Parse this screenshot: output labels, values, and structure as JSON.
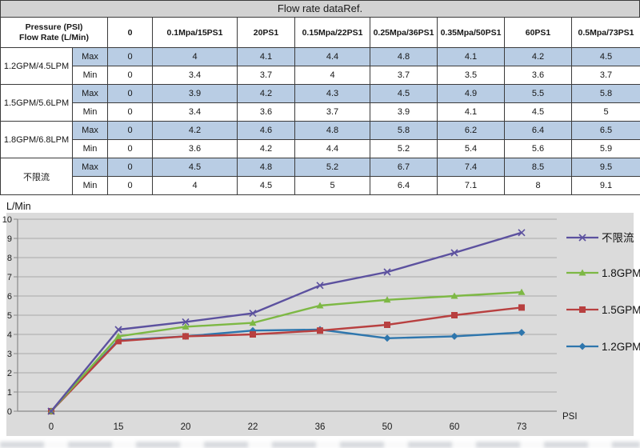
{
  "table": {
    "title": "Flow rate dataRef.",
    "corner": {
      "line1": "Pressure (PSI)",
      "line2": "Flow Rate (L/Min)"
    },
    "pressure_columns": [
      "0",
      "0.1Mpa/15PS1",
      "20PS1",
      "0.15Mpa/22PS1",
      "0.25Mpa/36PS1",
      "0.35Mpa/50PS1",
      "60PS1",
      "0.5Mpa/73PS1"
    ],
    "row_type_labels": {
      "max": "Max",
      "min": "Min"
    },
    "groups": [
      {
        "label": "1.2GPM/4.5LPM",
        "max": [
          "0",
          "4",
          "4.1",
          "4.4",
          "4.8",
          "4.1",
          "4.2",
          "4.5"
        ],
        "min": [
          "0",
          "3.4",
          "3.7",
          "4",
          "3.7",
          "3.5",
          "3.6",
          "3.7"
        ]
      },
      {
        "label": "1.5GPM/5.6LPM",
        "max": [
          "0",
          "3.9",
          "4.2",
          "4.3",
          "4.5",
          "4.9",
          "5.5",
          "5.8"
        ],
        "min": [
          "0",
          "3.4",
          "3.6",
          "3.7",
          "3.9",
          "4.1",
          "4.5",
          "5"
        ]
      },
      {
        "label": "1.8GPM/6.8LPM",
        "max": [
          "0",
          "4.2",
          "4.6",
          "4.8",
          "5.8",
          "6.2",
          "6.4",
          "6.5"
        ],
        "min": [
          "0",
          "3.6",
          "4.2",
          "4.4",
          "5.2",
          "5.4",
          "5.6",
          "5.9"
        ]
      },
      {
        "label": "不限流",
        "max": [
          "0",
          "4.5",
          "4.8",
          "5.2",
          "6.7",
          "7.4",
          "8.5",
          "9.5"
        ],
        "min": [
          "0",
          "4",
          "4.5",
          "5",
          "6.4",
          "7.1",
          "8",
          "9.1"
        ]
      }
    ],
    "colors": {
      "max_row_bg": "#b9cde4",
      "title_bg": "#d2d2d2",
      "border": "#3c3c3c"
    }
  },
  "chart_data": {
    "type": "line",
    "title": "",
    "ylabel": "L/Min",
    "xlabel": "PSI",
    "x": [
      0,
      15,
      20,
      22,
      36,
      50,
      60,
      73
    ],
    "x_tick_labels": [
      "0",
      "15",
      "20",
      "22",
      "36",
      "50",
      "60",
      "73"
    ],
    "ylim": [
      0,
      10
    ],
    "y_ticks": [
      0,
      1,
      2,
      3,
      4,
      5,
      6,
      7,
      8,
      9,
      10
    ],
    "grid": true,
    "legend_position": "right",
    "plot_bg": "#dbdbdb",
    "gridline_color": "#a9a9a9",
    "axis_color": "#8a8a8a",
    "series": [
      {
        "name": "不限流",
        "color": "#5c519f",
        "marker": "x",
        "values": [
          0,
          4.25,
          4.65,
          5.1,
          6.55,
          7.25,
          8.25,
          9.3
        ]
      },
      {
        "name": "1.8GPM",
        "color": "#7db844",
        "marker": "triangle",
        "values": [
          0,
          3.9,
          4.4,
          4.6,
          5.5,
          5.8,
          6.0,
          6.2
        ]
      },
      {
        "name": "1.5GPM",
        "color": "#b84040",
        "marker": "square",
        "values": [
          0,
          3.65,
          3.9,
          4.0,
          4.2,
          4.5,
          5.0,
          5.4
        ]
      },
      {
        "name": "1.2GPM",
        "color": "#2e76ad",
        "marker": "diamond",
        "values": [
          0,
          3.7,
          3.9,
          4.2,
          4.25,
          3.8,
          3.9,
          4.1
        ]
      }
    ]
  }
}
